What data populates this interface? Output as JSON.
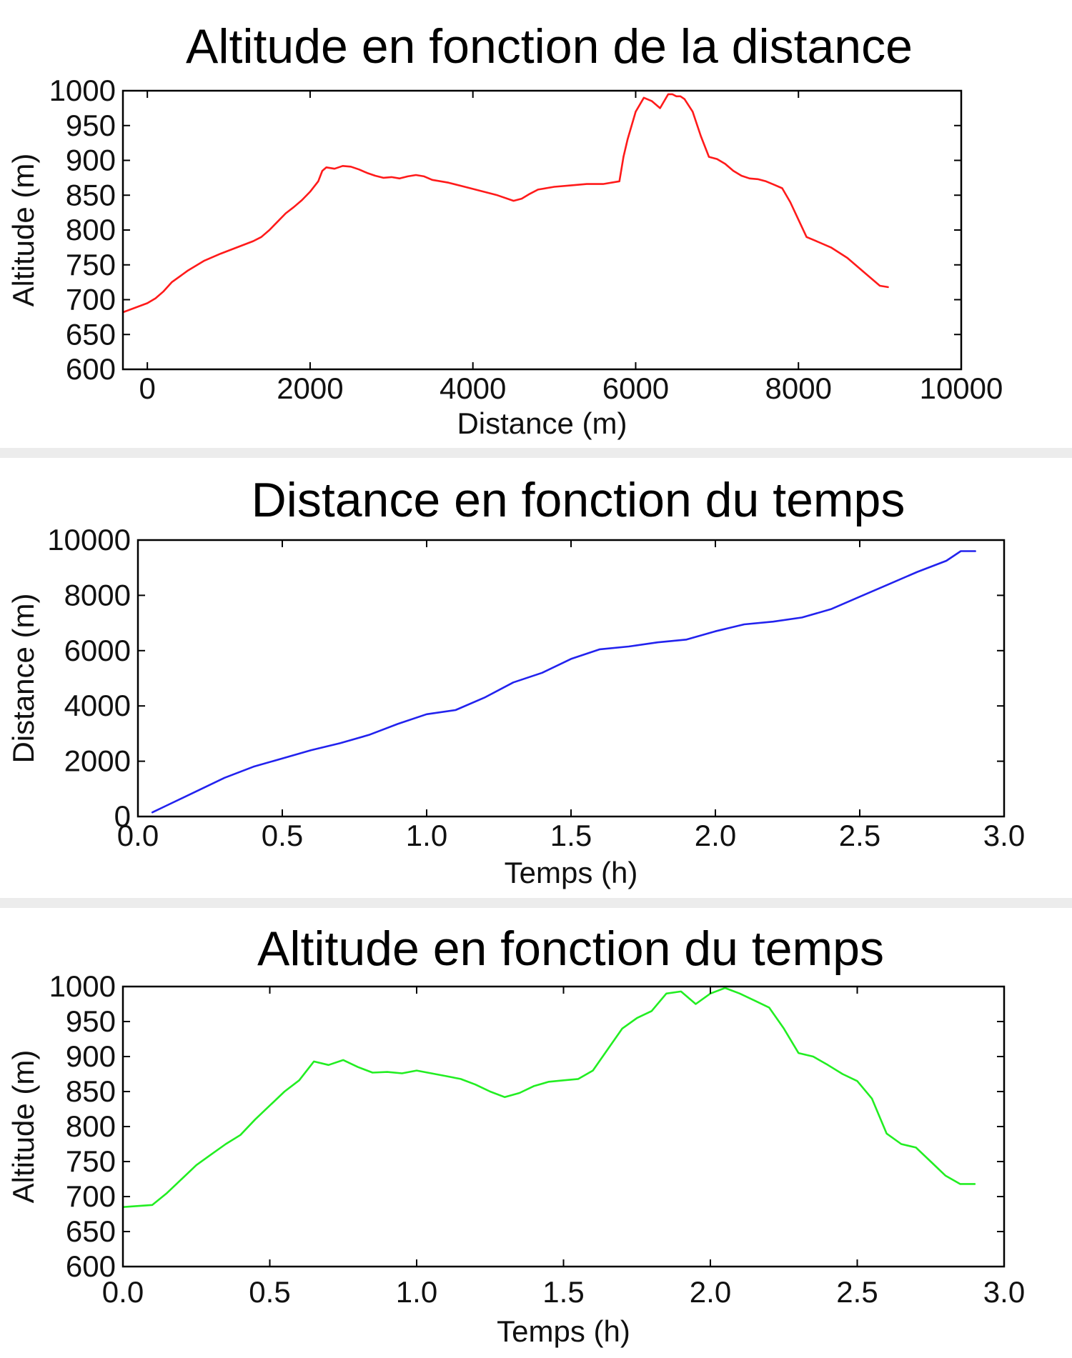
{
  "chart_data": [
    {
      "type": "line",
      "title": "Altitude en fonction de la distance",
      "xlabel": "Distance (m)",
      "ylabel": "Altitude (m)",
      "xlim": [
        -300,
        10000
      ],
      "ylim": [
        600,
        1000
      ],
      "xticks": [
        0,
        2000,
        4000,
        6000,
        8000,
        10000
      ],
      "yticks": [
        600,
        650,
        700,
        750,
        800,
        850,
        900,
        950,
        1000
      ],
      "grid": false,
      "color": "#ff1a1a",
      "series": [
        {
          "x": [
            -300,
            0,
            100,
            200,
            300,
            500,
            700,
            900,
            1100,
            1300,
            1400,
            1500,
            1600,
            1700,
            1800,
            1900,
            2000,
            2100,
            2150,
            2200,
            2300,
            2400,
            2500,
            2600,
            2700,
            2800,
            2900,
            3000,
            3100,
            3200,
            3300,
            3400,
            3500,
            3700,
            3900,
            4100,
            4300,
            4500,
            4600,
            4700,
            4800,
            5000,
            5200,
            5400,
            5600,
            5800,
            5850,
            5900,
            6000,
            6100,
            6200,
            6300,
            6400,
            6450,
            6500,
            6550,
            6600,
            6700,
            6800,
            6900,
            7000,
            7100,
            7200,
            7300,
            7400,
            7500,
            7600,
            7700,
            7800,
            7900,
            8000,
            8100,
            8200,
            8400,
            8600,
            8800,
            9000,
            9100
          ],
          "y": [
            682,
            695,
            702,
            712,
            725,
            742,
            756,
            766,
            775,
            784,
            790,
            800,
            812,
            824,
            833,
            843,
            855,
            870,
            885,
            890,
            888,
            892,
            891,
            887,
            882,
            878,
            875,
            876,
            874,
            877,
            879,
            877,
            872,
            868,
            862,
            856,
            850,
            842,
            845,
            852,
            858,
            862,
            864,
            866,
            866,
            870,
            905,
            930,
            970,
            990,
            985,
            975,
            995,
            995,
            992,
            992,
            988,
            970,
            935,
            905,
            902,
            895,
            885,
            878,
            874,
            873,
            870,
            865,
            860,
            840,
            815,
            790,
            785,
            775,
            760,
            740,
            720,
            718
          ]
        }
      ]
    },
    {
      "type": "line",
      "title": "Distance en fonction du temps",
      "xlabel": "Temps (h)",
      "ylabel": "Distance (m)",
      "xlim": [
        0.0,
        3.0
      ],
      "ylim": [
        0,
        10000
      ],
      "xticks": [
        0.0,
        0.5,
        1.0,
        1.5,
        2.0,
        2.5,
        3.0
      ],
      "xtick_labels": [
        "0.0",
        "0.5",
        "1.0",
        "1.5",
        "2.0",
        "2.5",
        "3.0"
      ],
      "yticks": [
        0,
        2000,
        4000,
        6000,
        8000,
        10000
      ],
      "grid": false,
      "color": "#2222ee",
      "series": [
        {
          "x": [
            0.05,
            0.1,
            0.2,
            0.3,
            0.4,
            0.5,
            0.6,
            0.7,
            0.8,
            0.9,
            1.0,
            1.1,
            1.2,
            1.3,
            1.4,
            1.5,
            1.6,
            1.7,
            1.8,
            1.9,
            2.0,
            2.1,
            2.2,
            2.3,
            2.4,
            2.5,
            2.6,
            2.7,
            2.8,
            2.85,
            2.9
          ],
          "y": [
            150,
            400,
            900,
            1400,
            1800,
            2100,
            2400,
            2650,
            2950,
            3350,
            3700,
            3850,
            4300,
            4850,
            5200,
            5700,
            6050,
            6150,
            6300,
            6400,
            6700,
            6950,
            7050,
            7200,
            7500,
            7950,
            8400,
            8850,
            9250,
            9600,
            9600
          ]
        }
      ]
    },
    {
      "type": "line",
      "title": "Altitude en fonction du temps",
      "xlabel": "Temps (h)",
      "ylabel": "Altitude (m)",
      "xlim": [
        0.0,
        3.0
      ],
      "ylim": [
        600,
        1000
      ],
      "xticks": [
        0.0,
        0.5,
        1.0,
        1.5,
        2.0,
        2.5,
        3.0
      ],
      "xtick_labels": [
        "0.0",
        "0.5",
        "1.0",
        "1.5",
        "2.0",
        "2.5",
        "3.0"
      ],
      "yticks": [
        600,
        650,
        700,
        750,
        800,
        850,
        900,
        950,
        1000
      ],
      "grid": false,
      "color": "#22ee22",
      "series": [
        {
          "x": [
            0.0,
            0.1,
            0.15,
            0.2,
            0.25,
            0.3,
            0.35,
            0.4,
            0.45,
            0.5,
            0.55,
            0.6,
            0.65,
            0.7,
            0.75,
            0.8,
            0.85,
            0.9,
            0.95,
            1.0,
            1.05,
            1.1,
            1.15,
            1.2,
            1.25,
            1.3,
            1.35,
            1.4,
            1.45,
            1.5,
            1.55,
            1.6,
            1.65,
            1.7,
            1.75,
            1.8,
            1.85,
            1.9,
            1.95,
            2.0,
            2.05,
            2.1,
            2.15,
            2.2,
            2.25,
            2.3,
            2.35,
            2.4,
            2.45,
            2.5,
            2.55,
            2.6,
            2.65,
            2.7,
            2.75,
            2.8,
            2.85,
            2.9
          ],
          "y": [
            685,
            688,
            705,
            725,
            745,
            760,
            775,
            788,
            810,
            830,
            850,
            866,
            893,
            888,
            895,
            885,
            877,
            878,
            876,
            880,
            876,
            872,
            868,
            860,
            850,
            842,
            848,
            858,
            864,
            866,
            868,
            880,
            910,
            940,
            955,
            965,
            990,
            993,
            975,
            990,
            998,
            990,
            980,
            970,
            940,
            905,
            900,
            888,
            875,
            865,
            840,
            790,
            775,
            770,
            750,
            730,
            718,
            718
          ]
        }
      ]
    }
  ]
}
